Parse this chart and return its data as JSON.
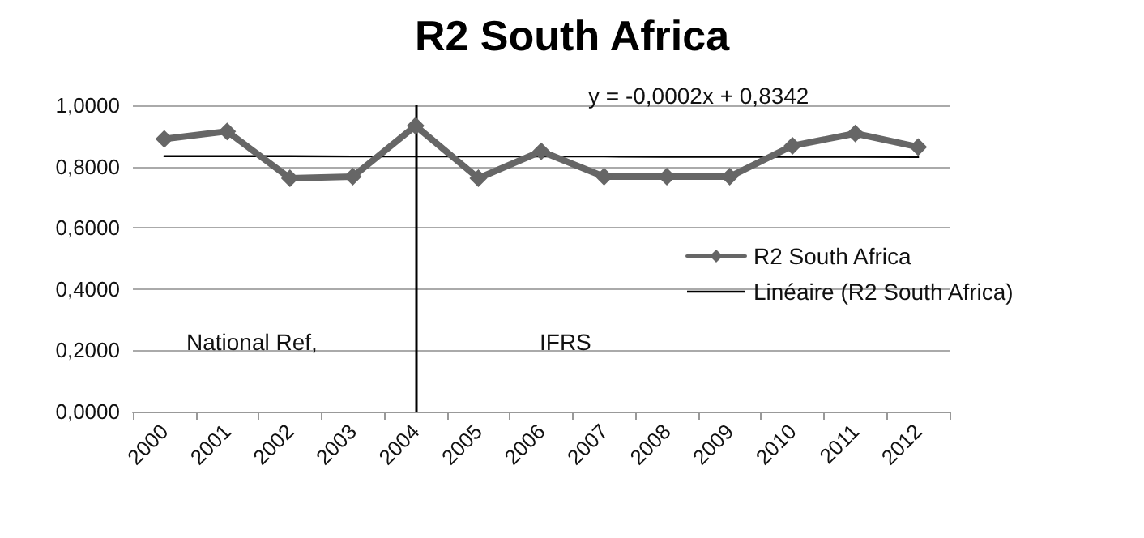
{
  "chart_data": {
    "type": "line",
    "title": "R2 South Africa",
    "categories": [
      "2000",
      "2001",
      "2002",
      "2003",
      "2004",
      "2005",
      "2006",
      "2007",
      "2008",
      "2009",
      "2010",
      "2011",
      "2012"
    ],
    "series": [
      {
        "name": "R2 South Africa",
        "color": "#666666",
        "marker": "diamond",
        "values": [
          0.89,
          0.915,
          0.762,
          0.767,
          0.933,
          0.762,
          0.85,
          0.767,
          0.767,
          0.767,
          0.868,
          0.908,
          0.864
        ]
      },
      {
        "name": "Linéaire (R2 South Africa)",
        "color": "#000000",
        "marker": "none",
        "values": [
          0.834,
          0.834,
          0.834,
          0.833,
          0.833,
          0.833,
          0.833,
          0.833,
          0.832,
          0.832,
          0.832,
          0.832,
          0.831
        ]
      }
    ],
    "ylim": [
      0,
      1
    ],
    "yticks": [
      {
        "value": 0,
        "label": "0,0000"
      },
      {
        "value": 0.2,
        "label": "0,2000"
      },
      {
        "value": 0.4,
        "label": "0,4000"
      },
      {
        "value": 0.6,
        "label": "0,6000"
      },
      {
        "value": 0.8,
        "label": "0,8000"
      },
      {
        "value": 1,
        "label": "1,0000"
      }
    ],
    "grid": "y",
    "legend": "right",
    "ref_lines": [
      {
        "axis": "x",
        "value": "2004",
        "color": "#000000"
      }
    ],
    "annotations": [
      "National Ref,",
      "IFRS",
      "y = -0,0002x + 0,8342"
    ]
  }
}
